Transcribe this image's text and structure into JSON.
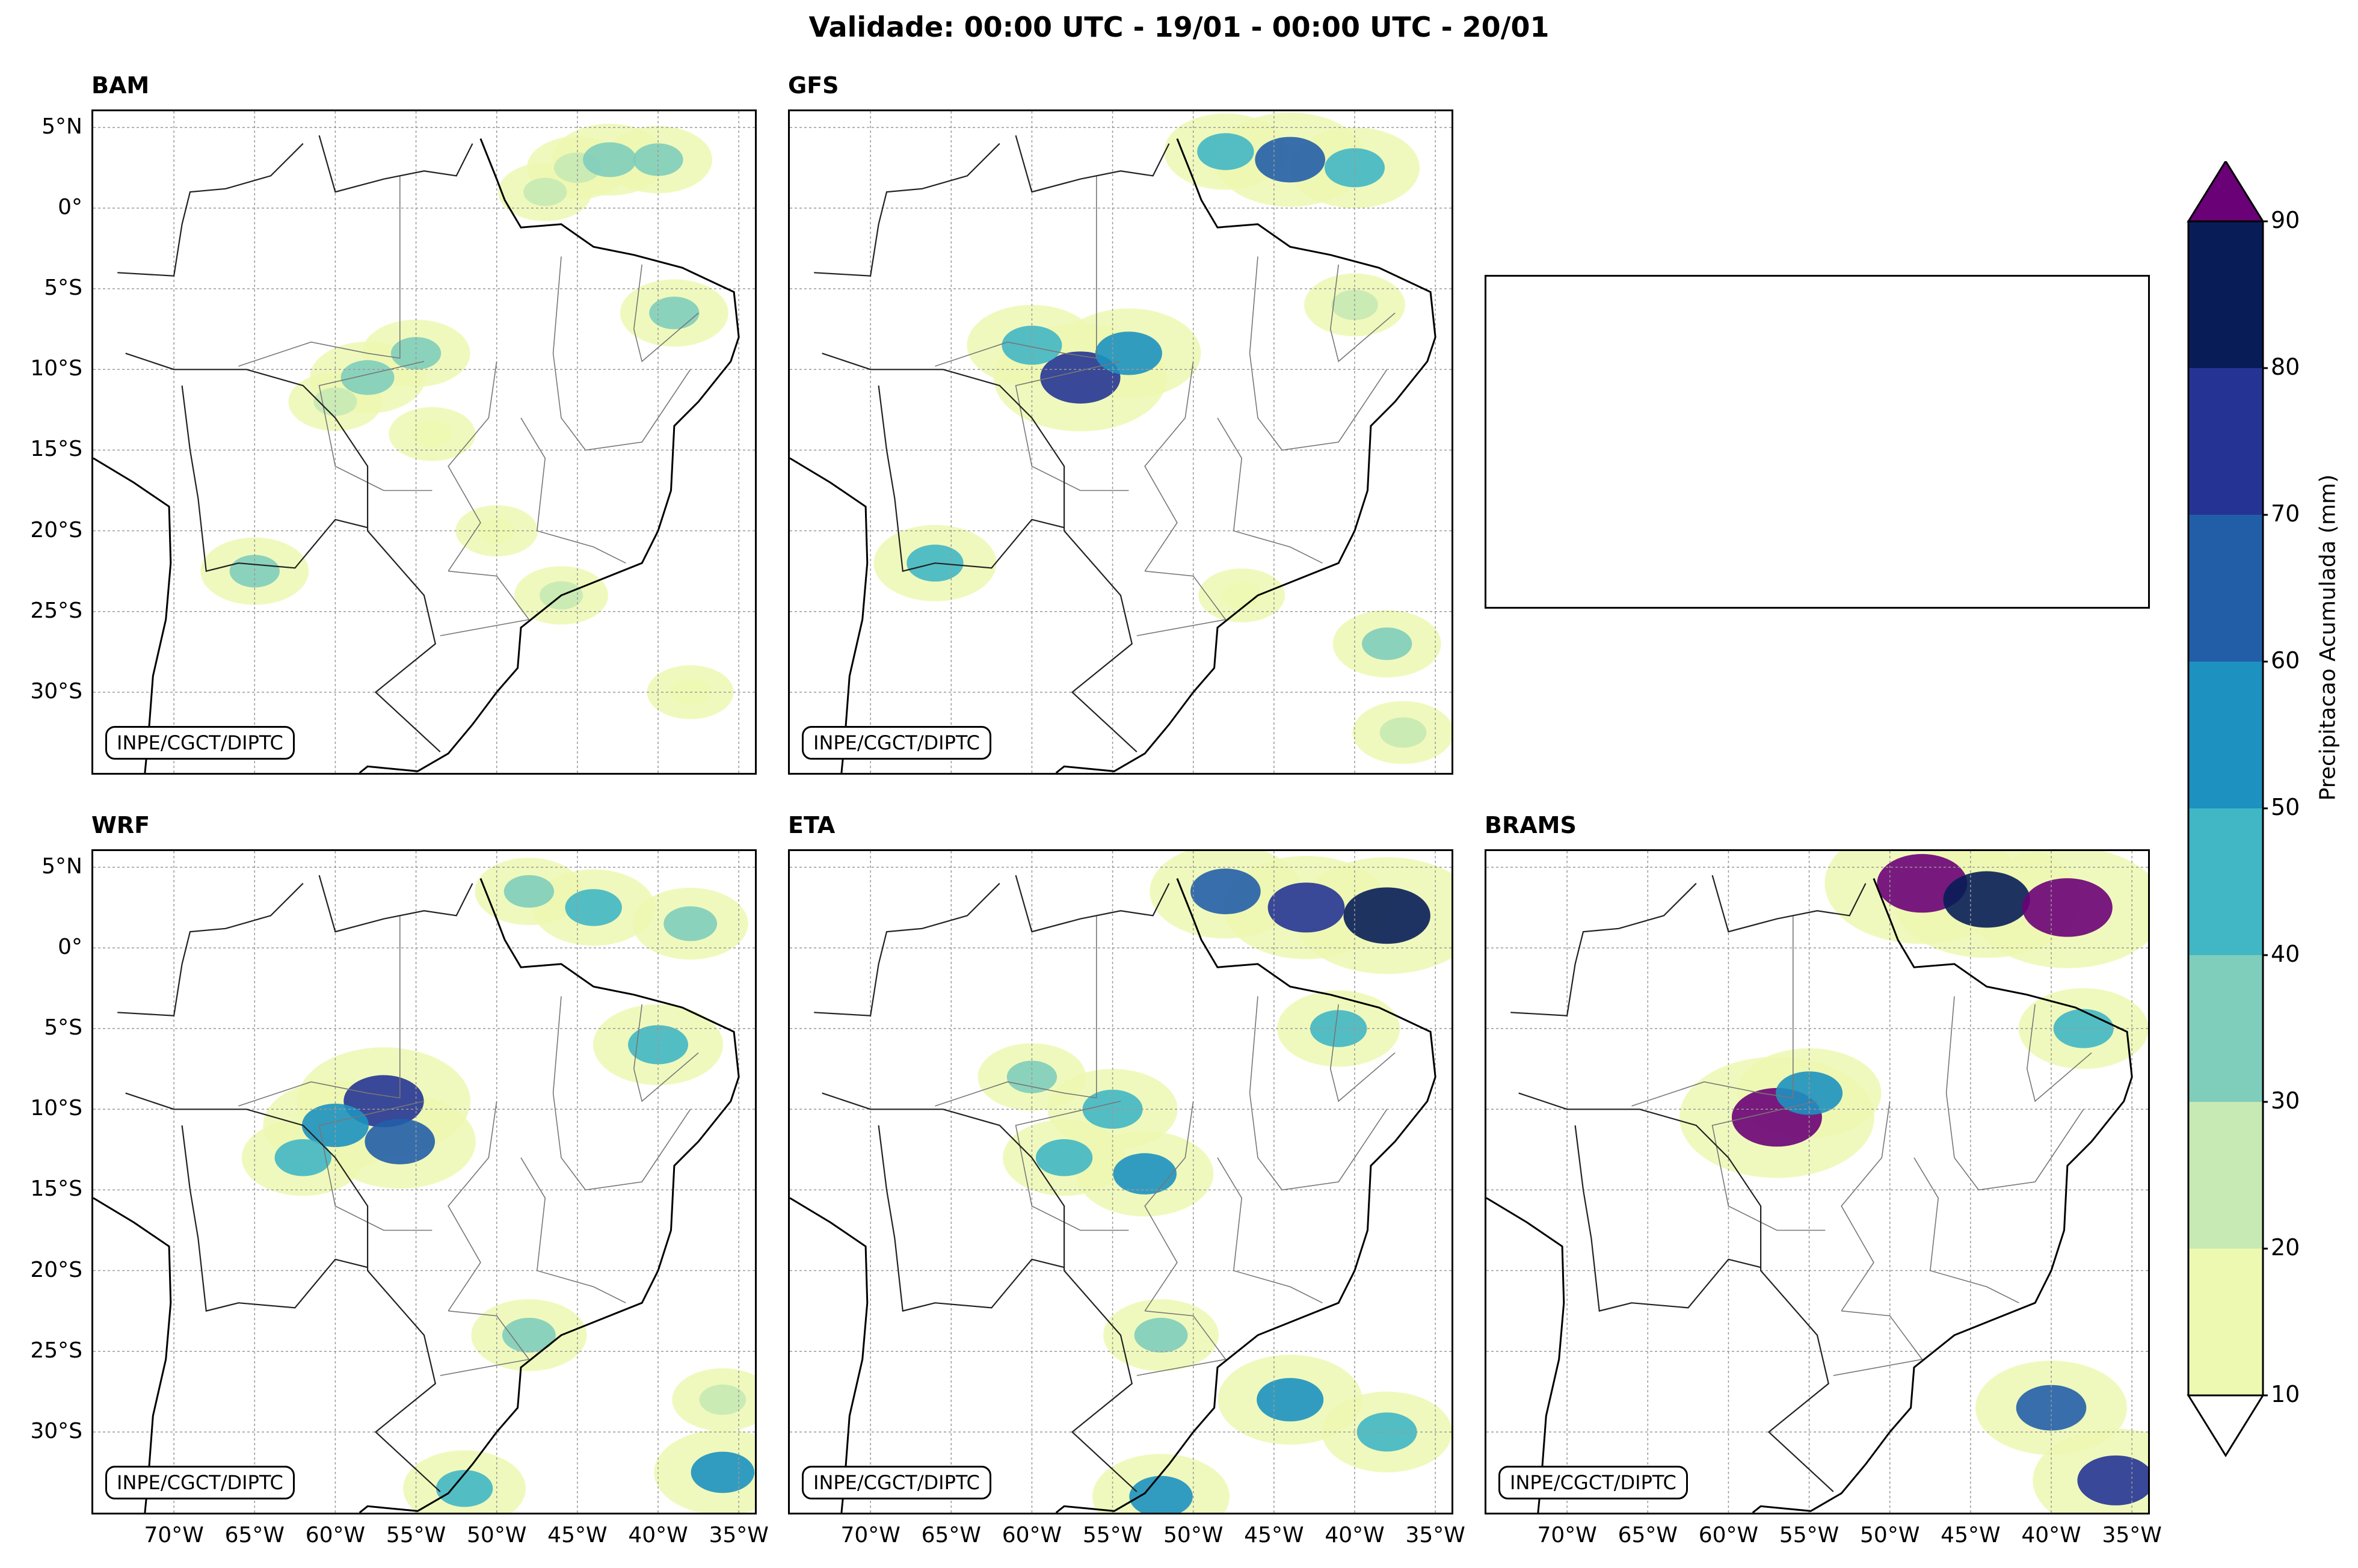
{
  "figure": {
    "title": "Validade: 00:00 UTC - 19/01 - 00:00 UTC - 20/01"
  },
  "panels": [
    {
      "name": "BAM",
      "credit": "INPE/CGCT/DIPTC"
    },
    {
      "name": "GFS",
      "credit": "INPE/CGCT/DIPTC"
    },
    {
      "name": "WRF",
      "credit": "INPE/CGCT/DIPTC"
    },
    {
      "name": "ETA",
      "credit": "INPE/CGCT/DIPTC"
    },
    {
      "name": "BRAMS",
      "credit": ""
    }
  ],
  "brams_credit": "INPE/CGCT/DIPTC",
  "axes": {
    "lat_labels": [
      "5°N",
      "0°",
      "5°S",
      "10°S",
      "15°S",
      "20°S",
      "25°S",
      "30°S"
    ],
    "lat_values": [
      5,
      0,
      -5,
      -10,
      -15,
      -20,
      -25,
      -30
    ],
    "lon_labels": [
      "70°W",
      "65°W",
      "60°W",
      "55°W",
      "50°W",
      "45°W",
      "40°W",
      "35°W"
    ],
    "lon_values": [
      -70,
      -65,
      -60,
      -55,
      -50,
      -45,
      -40,
      -35
    ],
    "lon_range": [
      -75,
      -34
    ],
    "lat_range": [
      -35,
      6
    ]
  },
  "colorbar": {
    "label": "Precipitacao Acumulada (mm)",
    "ticks": [
      "10",
      "20",
      "30",
      "40",
      "50",
      "60",
      "70",
      "80",
      "90"
    ],
    "bounds": [
      10,
      20,
      30,
      40,
      50,
      60,
      70,
      80,
      90
    ],
    "colors": [
      "#edf8b1",
      "#c7e9b4",
      "#7fcdbb",
      "#41b6c4",
      "#1d91c0",
      "#225ea8",
      "#253494",
      "#081d58"
    ],
    "over_color": "#6a0177",
    "under_color": "#ffffff"
  },
  "precip_blobs": {
    "BAM": [
      {
        "lon": -45,
        "lat": 2.5,
        "value": 25
      },
      {
        "lon": -43,
        "lat": 3.0,
        "value": 35
      },
      {
        "lon": -40,
        "lat": 3.0,
        "value": 30
      },
      {
        "lon": -47,
        "lat": 1.0,
        "value": 20
      },
      {
        "lon": -58,
        "lat": -10.5,
        "value": 35
      },
      {
        "lon": -55,
        "lat": -9.0,
        "value": 30
      },
      {
        "lon": -60,
        "lat": -12.0,
        "value": 20
      },
      {
        "lon": -54,
        "lat": -14.0,
        "value": 15
      },
      {
        "lon": -39,
        "lat": -6.5,
        "value": 30
      },
      {
        "lon": -46,
        "lat": -24.0,
        "value": 20
      },
      {
        "lon": -65,
        "lat": -22.5,
        "value": 30
      },
      {
        "lon": -38,
        "lat": -30.0,
        "value": 15
      },
      {
        "lon": -50,
        "lat": -20.0,
        "value": 12
      }
    ],
    "GFS": [
      {
        "lon": -44,
        "lat": 3.0,
        "value": 60
      },
      {
        "lon": -40,
        "lat": 2.5,
        "value": 45
      },
      {
        "lon": -48,
        "lat": 3.5,
        "value": 40
      },
      {
        "lon": -57,
        "lat": -10.5,
        "value": 75
      },
      {
        "lon": -54,
        "lat": -9.0,
        "value": 55
      },
      {
        "lon": -60,
        "lat": -8.5,
        "value": 45
      },
      {
        "lon": -40,
        "lat": -6.0,
        "value": 25
      },
      {
        "lon": -38,
        "lat": -27.0,
        "value": 30
      },
      {
        "lon": -47,
        "lat": -24.0,
        "value": 15
      },
      {
        "lon": -66,
        "lat": -22.0,
        "value": 40
      },
      {
        "lon": -37,
        "lat": -32.5,
        "value": 25
      }
    ],
    "WRF": [
      {
        "lon": -44,
        "lat": 2.5,
        "value": 40
      },
      {
        "lon": -48,
        "lat": 3.5,
        "value": 30
      },
      {
        "lon": -38,
        "lat": 1.5,
        "value": 35
      },
      {
        "lon": -57,
        "lat": -9.5,
        "value": 75
      },
      {
        "lon": -60,
        "lat": -11.0,
        "value": 55
      },
      {
        "lon": -56,
        "lat": -12.0,
        "value": 60
      },
      {
        "lon": -62,
        "lat": -13.0,
        "value": 40
      },
      {
        "lon": -40,
        "lat": -6.0,
        "value": 45
      },
      {
        "lon": -36,
        "lat": -28.0,
        "value": 25
      },
      {
        "lon": -36,
        "lat": -32.5,
        "value": 50
      },
      {
        "lon": -52,
        "lat": -33.5,
        "value": 40
      },
      {
        "lon": -48,
        "lat": -24.0,
        "value": 35
      }
    ],
    "ETA": [
      {
        "lon": -43,
        "lat": 2.5,
        "value": 70
      },
      {
        "lon": -38,
        "lat": 2.0,
        "value": 85
      },
      {
        "lon": -48,
        "lat": 3.5,
        "value": 60
      },
      {
        "lon": -55,
        "lat": -10.0,
        "value": 45
      },
      {
        "lon": -58,
        "lat": -13.0,
        "value": 40
      },
      {
        "lon": -53,
        "lat": -14.0,
        "value": 50
      },
      {
        "lon": -60,
        "lat": -8.0,
        "value": 30
      },
      {
        "lon": -41,
        "lat": -5.0,
        "value": 40
      },
      {
        "lon": -44,
        "lat": -28.0,
        "value": 55
      },
      {
        "lon": -38,
        "lat": -30.0,
        "value": 45
      },
      {
        "lon": -52,
        "lat": -24.0,
        "value": 35
      },
      {
        "lon": -52,
        "lat": -34.0,
        "value": 50
      }
    ],
    "BRAMS": [
      {
        "lon": -48,
        "lat": 4.0,
        "value": 90
      },
      {
        "lon": -44,
        "lat": 3.0,
        "value": 85
      },
      {
        "lon": -39,
        "lat": 2.5,
        "value": 90
      },
      {
        "lon": -57,
        "lat": -10.5,
        "value": 90
      },
      {
        "lon": -55,
        "lat": -9.0,
        "value": 55
      },
      {
        "lon": -38,
        "lat": -5.0,
        "value": 45
      },
      {
        "lon": -40,
        "lat": -28.5,
        "value": 60
      },
      {
        "lon": -36,
        "lat": -33.0,
        "value": 70
      }
    ]
  }
}
